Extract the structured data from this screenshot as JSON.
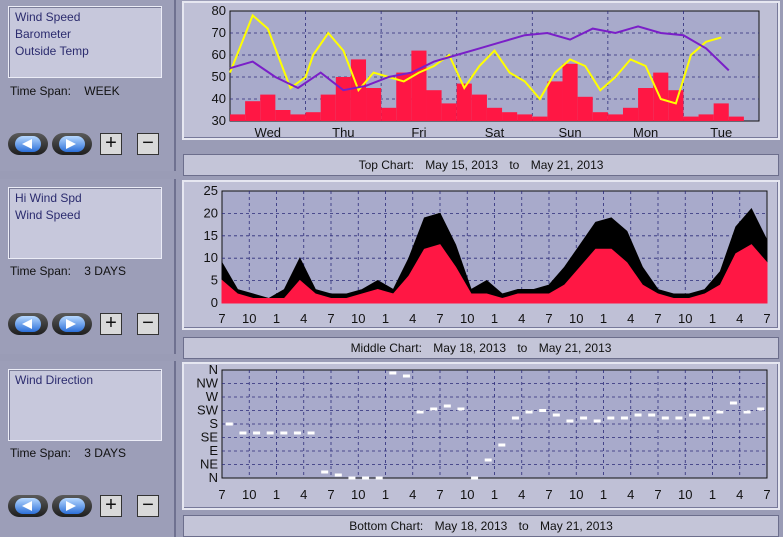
{
  "panels": [
    {
      "legend": [
        "Wind Speed",
        "Barometer",
        "Outside Temp"
      ],
      "time_span_label": "Time Span:",
      "time_span_value": "WEEK",
      "caption": {
        "prefix": "Top Chart:",
        "from": "May 15, 2013",
        "to_word": "to",
        "to": "May 21, 2013"
      }
    },
    {
      "legend": [
        "Hi Wind Spd",
        "Wind Speed"
      ],
      "time_span_label": "Time Span:",
      "time_span_value": "3 DAYS",
      "caption": {
        "prefix": "Middle Chart:",
        "from": "May 18, 2013",
        "to_word": "to",
        "to": "May 21, 2013"
      }
    },
    {
      "legend": [
        "Wind Direction"
      ],
      "time_span_label": "Time Span:",
      "time_span_value": "3 DAYS",
      "caption": {
        "prefix": "Bottom Chart:",
        "from": "May 18, 2013",
        "to_word": "to",
        "to": "May 21, 2013"
      }
    }
  ],
  "buttons": {
    "back_icon": "left-arrow-icon",
    "forward_icon": "right-arrow-icon",
    "zoom_in": "+",
    "zoom_out": "−"
  },
  "colors": {
    "wind_speed": "#ff1744",
    "hi_wind": "#000000",
    "barometer": "#7a1fc8",
    "outside_temp": "#ffff00",
    "direction": "#ffffff",
    "grid": "#2c2c7a"
  },
  "chart_data": [
    {
      "type": "line",
      "title": "Top Chart",
      "x_labels": [
        "Wed",
        "Thu",
        "Fri",
        "Sat",
        "Sun",
        "Mon",
        "Tue"
      ],
      "ylim": [
        30,
        80
      ],
      "y_ticks": [
        "30",
        "40",
        "50",
        "60",
        "70",
        "80"
      ],
      "grid": true,
      "series": [
        {
          "name": "Outside Temp",
          "color": "#ffff00",
          "x": [
            0,
            0.3,
            0.5,
            0.8,
            1.0,
            1.1,
            1.3,
            1.5,
            1.7,
            1.9,
            2.1,
            2.3,
            2.5,
            2.7,
            2.9,
            3.1,
            3.3,
            3.5,
            3.7,
            3.9,
            4.1,
            4.3,
            4.5,
            4.7,
            4.9,
            5.1,
            5.3,
            5.5,
            5.7,
            5.9,
            6.1,
            6.3,
            6.5
          ],
          "values": [
            52,
            78,
            72,
            45,
            50,
            60,
            70,
            62,
            44,
            52,
            50,
            48,
            52,
            55,
            60,
            45,
            55,
            62,
            52,
            48,
            40,
            52,
            58,
            55,
            44,
            50,
            58,
            55,
            40,
            38,
            60,
            66,
            68
          ]
        },
        {
          "name": "Barometer",
          "color": "#7a1fc8",
          "x": [
            0,
            0.3,
            0.6,
            0.9,
            1.2,
            1.5,
            1.8,
            2.1,
            2.4,
            2.7,
            3.0,
            3.3,
            3.6,
            3.9,
            4.2,
            4.5,
            4.8,
            5.1,
            5.4,
            5.7,
            6.0,
            6.3,
            6.6
          ],
          "values": [
            54,
            57,
            50,
            45,
            52,
            44,
            46,
            50,
            52,
            57,
            60,
            63,
            66,
            69,
            70,
            67,
            72,
            70,
            73,
            70,
            69,
            63,
            53
          ]
        },
        {
          "name": "Wind Speed",
          "color": "#ff1744",
          "x": [
            0,
            0.2,
            0.4,
            0.6,
            0.8,
            1.0,
            1.2,
            1.4,
            1.6,
            1.8,
            2.0,
            2.2,
            2.4,
            2.6,
            2.8,
            3.0,
            3.2,
            3.4,
            3.6,
            3.8,
            4.0,
            4.2,
            4.4,
            4.6,
            4.8,
            5.0,
            5.2,
            5.4,
            5.6,
            5.8,
            6.0,
            6.2,
            6.4,
            6.6
          ],
          "values": [
            33,
            39,
            42,
            35,
            33,
            34,
            42,
            50,
            58,
            45,
            36,
            52,
            62,
            44,
            38,
            47,
            42,
            36,
            34,
            33,
            32,
            48,
            56,
            41,
            34,
            33,
            36,
            45,
            52,
            44,
            32,
            33,
            38,
            32
          ]
        }
      ]
    },
    {
      "type": "area",
      "title": "Middle Chart",
      "x_labels": [
        "7",
        "10",
        "1",
        "4",
        "7",
        "10",
        "1",
        "4",
        "7",
        "10",
        "1",
        "4",
        "7",
        "10",
        "1",
        "4",
        "7",
        "10",
        "1",
        "4",
        "7"
      ],
      "ylim": [
        0,
        25
      ],
      "y_ticks": [
        "0",
        "5",
        "10",
        "15",
        "20",
        "25"
      ],
      "grid": true,
      "series": [
        {
          "name": "Hi Wind Spd",
          "color": "#000000",
          "values": [
            9,
            3,
            2,
            1,
            3,
            10,
            3,
            2,
            2,
            3,
            5,
            3,
            10,
            19,
            20,
            13,
            3,
            5,
            2,
            3,
            3,
            4,
            8,
            13,
            18,
            19,
            16,
            8,
            3,
            2,
            2,
            3,
            7,
            17,
            21,
            14
          ]
        },
        {
          "name": "Wind Speed",
          "color": "#ff1744",
          "values": [
            5,
            2,
            1,
            1,
            1,
            5,
            2,
            1,
            1,
            2,
            3,
            2,
            6,
            12,
            13,
            8,
            2,
            2,
            1,
            2,
            2,
            2,
            4,
            8,
            12,
            12,
            9,
            4,
            2,
            1,
            1,
            2,
            4,
            11,
            13,
            9
          ]
        }
      ]
    },
    {
      "type": "line",
      "title": "Bottom Chart",
      "x_labels": [
        "7",
        "10",
        "1",
        "4",
        "7",
        "10",
        "1",
        "4",
        "7",
        "10",
        "1",
        "4",
        "7",
        "10",
        "1",
        "4",
        "7",
        "10",
        "1",
        "4",
        "7"
      ],
      "y_ticks": [
        "N",
        "NE",
        "E",
        "SE",
        "S",
        "SW",
        "W",
        "NW",
        "N"
      ],
      "grid": true,
      "series": [
        {
          "name": "Wind Direction",
          "color": "#ffffff",
          "values": [
            180,
            150,
            150,
            150,
            150,
            150,
            150,
            20,
            10,
            0,
            0,
            0,
            350,
            340,
            220,
            230,
            240,
            230,
            0,
            60,
            110,
            200,
            220,
            225,
            210,
            190,
            200,
            190,
            200,
            200,
            210,
            210,
            200,
            200,
            210,
            200,
            220,
            250,
            220,
            230
          ]
        }
      ]
    }
  ]
}
